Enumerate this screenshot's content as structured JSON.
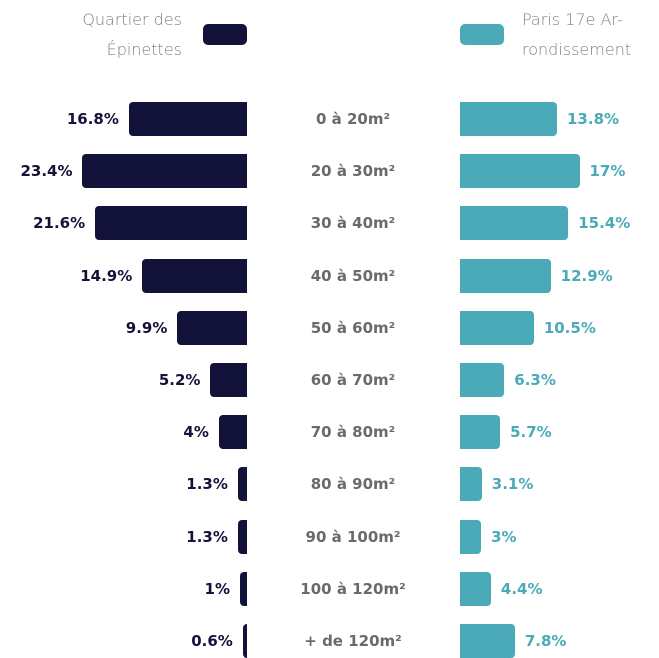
{
  "chart_data": {
    "type": "butterfly",
    "categories": [
      "0 à 20m²",
      "20 à 30m²",
      "30 à 40m²",
      "40 à 50m²",
      "50 à 60m²",
      "60 à 70m²",
      "70 à 80m²",
      "80 à 90m²",
      "90 à 100m²",
      "100 à 120m²",
      "+ de 120m²"
    ],
    "series": [
      {
        "name": "Quartier des Épinettes",
        "color": "#13123a",
        "side": "left",
        "values": [
          16.8,
          23.4,
          21.6,
          14.9,
          9.9,
          5.2,
          4,
          1.3,
          1.3,
          1,
          0.6
        ],
        "value_labels": [
          "16.8%",
          "23.4%",
          "21.6%",
          "14.9%",
          "9.9%",
          "5.2%",
          "4%",
          "1.3%",
          "1.3%",
          "1%",
          "0.6%"
        ]
      },
      {
        "name": "Paris 17e Ar-rondissement",
        "color": "#4aaab8",
        "side": "right",
        "values": [
          13.8,
          17,
          15.4,
          12.9,
          10.5,
          6.3,
          5.7,
          3.1,
          3,
          4.4,
          7.8
        ],
        "value_labels": [
          "13.8%",
          "17%",
          "15.4%",
          "12.9%",
          "10.5%",
          "6.3%",
          "5.7%",
          "3.1%",
          "3%",
          "4.4%",
          "7.8%"
        ]
      }
    ]
  }
}
